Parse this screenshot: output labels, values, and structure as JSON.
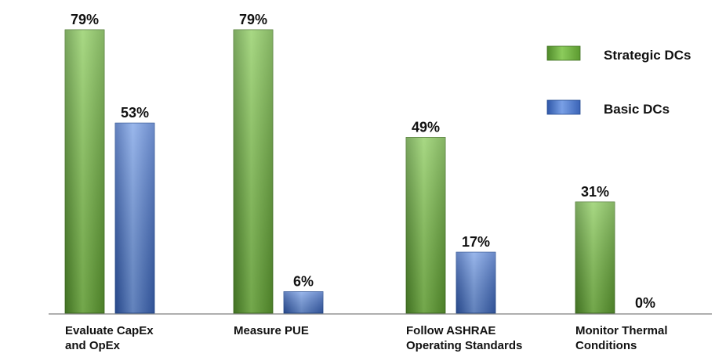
{
  "chart_data": {
    "type": "bar",
    "categories": [
      [
        "Evaluate CapEx",
        "and OpEx"
      ],
      [
        "Measure PUE"
      ],
      [
        "Follow ASHRAE",
        "Operating Standards"
      ],
      [
        "Monitor Thermal",
        "Conditions"
      ]
    ],
    "series": [
      {
        "name": "Strategic DCs",
        "values": [
          79,
          79,
          49,
          31
        ],
        "labels": [
          "79%",
          "79%",
          "49%",
          "31%"
        ],
        "color": "#6aaa3a"
      },
      {
        "name": "Basic DCs",
        "values": [
          53,
          6,
          17,
          0
        ],
        "labels": [
          "53%",
          "6%",
          "17%",
          "0%"
        ],
        "color": "#4a72c0"
      }
    ],
    "ylim": [
      0,
      79
    ],
    "grid": false,
    "legend_position": "top-right"
  }
}
